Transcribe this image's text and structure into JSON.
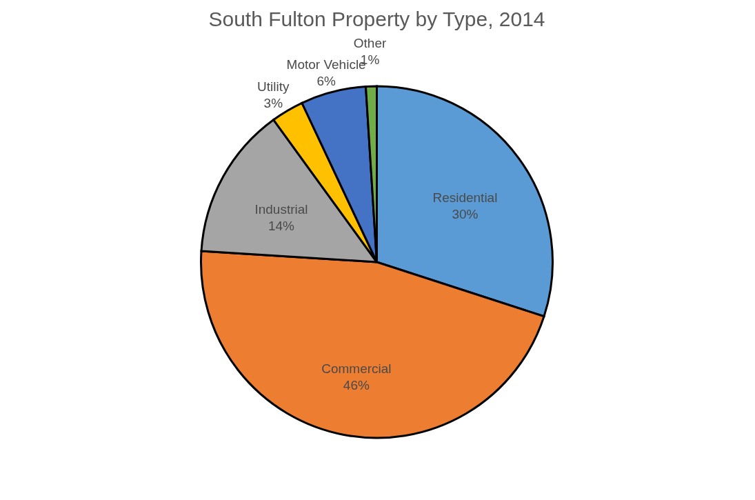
{
  "chart_data": {
    "type": "pie",
    "title": "South Fulton Property by Type, 2014",
    "categories": [
      "Residential",
      "Commercial",
      "Industrial",
      "Utility",
      "Motor Vehicle",
      "Other"
    ],
    "values": [
      30,
      46,
      14,
      3,
      6,
      1
    ],
    "colors": [
      "#5b9bd5",
      "#ed7d31",
      "#a5a5a5",
      "#ffc000",
      "#4472c4",
      "#70ad47"
    ],
    "value_labels": [
      "30%",
      "46%",
      "14%",
      "3%",
      "6%",
      "1%"
    ],
    "legend": false
  }
}
